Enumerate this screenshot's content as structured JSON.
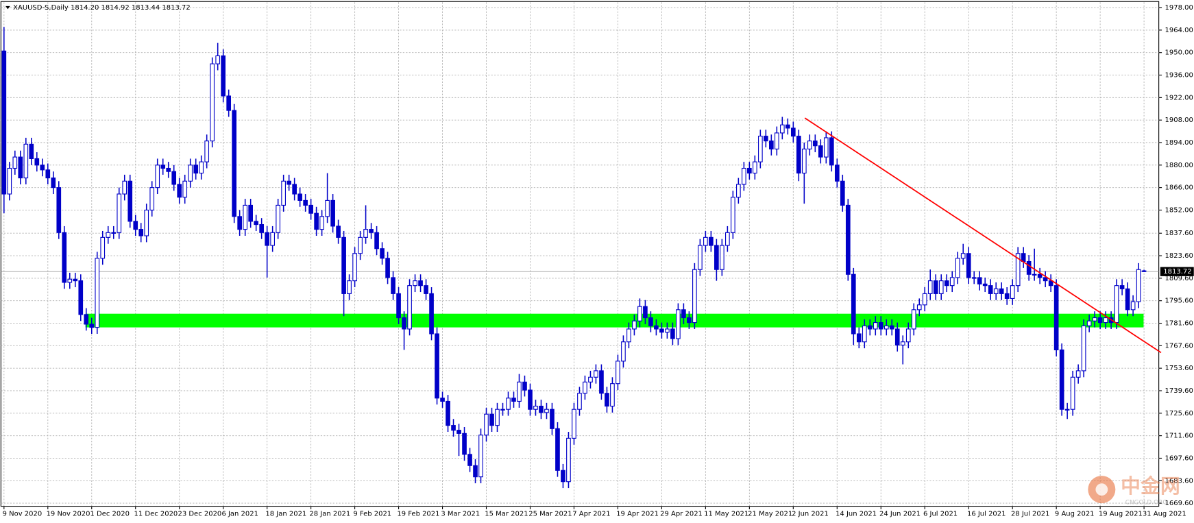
{
  "chart_data": {
    "type": "candlestick",
    "title": "XAUUSD-S,Daily  1814.20 1814.92 1813.44 1813.72",
    "categories": [
      "9 Nov 2020",
      null,
      null,
      null,
      null,
      null,
      null,
      null,
      "19 Nov 2020",
      null,
      null,
      null,
      null,
      null,
      null,
      null,
      "1 Dec 2020",
      null,
      null,
      null,
      null,
      null,
      null,
      null,
      "11 Dec 2020",
      null,
      null,
      null,
      null,
      null,
      null,
      null,
      "23 Dec 2020",
      null,
      null,
      null,
      null,
      null,
      null,
      null,
      "6 Jan 2021",
      null,
      null,
      null,
      null,
      null,
      null,
      null,
      "18 Jan 2021",
      null,
      null,
      null,
      null,
      null,
      null,
      null,
      "28 Jan 2021",
      null,
      null,
      null,
      null,
      null,
      null,
      null,
      "9 Feb 2021",
      null,
      null,
      null,
      null,
      null,
      null,
      null,
      "19 Feb 2021",
      null,
      null,
      null,
      null,
      null,
      null,
      null,
      "3 Mar 2021",
      null,
      null,
      null,
      null,
      null,
      null,
      null,
      "15 Mar 2021",
      null,
      null,
      null,
      null,
      null,
      null,
      null,
      "25 Mar 2021",
      null,
      null,
      null,
      null,
      null,
      null,
      null,
      "7 Apr 2021",
      null,
      null,
      null,
      null,
      null,
      null,
      null,
      "19 Apr 2021",
      null,
      null,
      null,
      null,
      null,
      null,
      null,
      "29 Apr 2021",
      null,
      null,
      null,
      null,
      null,
      null,
      null,
      "11 May 2021",
      null,
      null,
      null,
      null,
      null,
      null,
      null,
      "21 May 2021",
      null,
      null,
      null,
      null,
      null,
      null,
      null,
      "2 Jun 2021",
      null,
      null,
      null,
      null,
      null,
      null,
      null,
      "14 Jun 2021",
      null,
      null,
      null,
      null,
      null,
      null,
      null,
      "24 Jun 2021",
      null,
      null,
      null,
      null,
      null,
      null,
      null,
      "6 Jul 2021",
      null,
      null,
      null,
      null,
      null,
      null,
      null,
      "16 Jul 2021",
      null,
      null,
      null,
      null,
      null,
      null,
      null,
      "28 Jul 2021",
      null,
      null,
      null,
      null,
      null,
      null,
      null,
      "9 Aug 2021",
      null,
      null,
      null,
      null,
      null,
      null,
      null,
      "19 Aug 2021",
      null,
      null,
      null,
      null,
      null,
      null,
      null,
      "31 Aug 2021"
    ],
    "open": [
      1951,
      1862,
      1878,
      1885,
      1872,
      1893,
      1884,
      1880,
      1877,
      1872,
      1866,
      1838,
      1807,
      1809,
      1808,
      1787,
      1781,
      1779,
      1822,
      1835,
      1838,
      1838,
      1862,
      1870,
      1845,
      1840,
      1836,
      1852,
      1866,
      1880,
      1878,
      1876,
      1868,
      1860,
      1870,
      1880,
      1875,
      1882,
      1895,
      1943,
      1948,
      1923,
      1914,
      1848,
      1840,
      1855,
      1845,
      1843,
      1838,
      1830,
      1838,
      1855,
      1870,
      1868,
      1862,
      1858,
      1855,
      1850,
      1840,
      1848,
      1858,
      1842,
      1835,
      1800,
      1808,
      1825,
      1835,
      1840,
      1838,
      1828,
      1822,
      1810,
      1800,
      1785,
      1778,
      1805,
      1808,
      1805,
      1800,
      1775,
      1735,
      1733,
      1718,
      1715,
      1713,
      1700,
      1693,
      1686,
      1712,
      1725,
      1718,
      1728,
      1728,
      1735,
      1733,
      1745,
      1740,
      1728,
      1730,
      1726,
      1728,
      1716,
      1690,
      1683,
      1710,
      1728,
      1738,
      1745,
      1748,
      1752,
      1738,
      1730,
      1744,
      1758,
      1770,
      1778,
      1783,
      1792,
      1785,
      1780,
      1778,
      1776,
      1778,
      1772,
      1790,
      1785,
      1782,
      1815,
      1830,
      1835,
      1830,
      1815,
      1830,
      1838,
      1860,
      1868,
      1878,
      1875,
      1882,
      1898,
      1895,
      1890,
      1900,
      1905,
      1903,
      1898,
      1875,
      1890,
      1895,
      1892,
      1885,
      1897,
      1880,
      1870,
      1855,
      1812,
      1775,
      1770,
      1780,
      1778,
      1782,
      1778,
      1780,
      1778,
      1768,
      1770,
      1778,
      1790,
      1793,
      1800,
      1808,
      1800,
      1808,
      1805,
      1810,
      1822,
      1825,
      1810,
      1810,
      1806,
      1805,
      1800,
      1803,
      1800,
      1797,
      1805,
      1825,
      1820,
      1812,
      1812,
      1810,
      1808,
      1805,
      1765,
      1728,
      1728,
      1748,
      1752,
      1780,
      1783,
      1785,
      1782,
      1785,
      1782,
      1805,
      1803,
      1790,
      1795,
      1814.2
    ],
    "high": [
      1966,
      1882,
      1889,
      1889,
      1897,
      1897,
      1888,
      1884,
      1881,
      1876,
      1870,
      1842,
      1813,
      1813,
      1812,
      1791,
      1785,
      1826,
      1839,
      1842,
      1842,
      1866,
      1874,
      1874,
      1849,
      1844,
      1856,
      1870,
      1884,
      1884,
      1882,
      1880,
      1872,
      1874,
      1884,
      1884,
      1886,
      1899,
      1947,
      1956,
      1952,
      1927,
      1918,
      1852,
      1859,
      1859,
      1849,
      1847,
      1842,
      1842,
      1859,
      1874,
      1874,
      1872,
      1866,
      1862,
      1859,
      1854,
      1852,
      1875,
      1862,
      1846,
      1839,
      1812,
      1829,
      1839,
      1855,
      1844,
      1842,
      1832,
      1826,
      1814,
      1804,
      1789,
      1809,
      1812,
      1812,
      1809,
      1804,
      1779,
      1739,
      1737,
      1722,
      1719,
      1717,
      1704,
      1697,
      1716,
      1729,
      1729,
      1732,
      1732,
      1739,
      1739,
      1750,
      1749,
      1744,
      1734,
      1734,
      1732,
      1732,
      1720,
      1694,
      1714,
      1732,
      1742,
      1749,
      1752,
      1756,
      1756,
      1742,
      1748,
      1762,
      1774,
      1782,
      1787,
      1797,
      1796,
      1789,
      1784,
      1782,
      1782,
      1782,
      1794,
      1794,
      1789,
      1819,
      1834,
      1839,
      1839,
      1834,
      1834,
      1842,
      1864,
      1872,
      1882,
      1882,
      1886,
      1902,
      1902,
      1899,
      1904,
      1910,
      1909,
      1907,
      1902,
      1894,
      1899,
      1899,
      1896,
      1901,
      1901,
      1884,
      1874,
      1859,
      1816,
      1779,
      1784,
      1784,
      1786,
      1786,
      1784,
      1784,
      1782,
      1774,
      1782,
      1794,
      1797,
      1804,
      1815,
      1812,
      1812,
      1812,
      1814,
      1826,
      1831,
      1829,
      1814,
      1814,
      1810,
      1809,
      1807,
      1807,
      1804,
      1809,
      1829,
      1829,
      1824,
      1828,
      1816,
      1814,
      1812,
      1809,
      1769,
      1732,
      1752,
      1756,
      1784,
      1787,
      1789,
      1789,
      1789,
      1789,
      1809,
      1809,
      1807,
      1799,
      1819,
      1814.92
    ],
    "low": [
      1850,
      1858,
      1874,
      1868,
      1868,
      1880,
      1876,
      1873,
      1868,
      1862,
      1834,
      1803,
      1803,
      1804,
      1783,
      1777,
      1775,
      1775,
      1818,
      1831,
      1834,
      1834,
      1858,
      1841,
      1836,
      1832,
      1832,
      1848,
      1862,
      1874,
      1872,
      1864,
      1856,
      1856,
      1866,
      1871,
      1871,
      1878,
      1891,
      1939,
      1919,
      1910,
      1844,
      1836,
      1836,
      1841,
      1839,
      1834,
      1810,
      1826,
      1834,
      1851,
      1864,
      1858,
      1854,
      1851,
      1846,
      1836,
      1836,
      1844,
      1838,
      1831,
      1786,
      1796,
      1804,
      1821,
      1831,
      1834,
      1824,
      1818,
      1806,
      1796,
      1781,
      1765,
      1774,
      1801,
      1801,
      1796,
      1771,
      1731,
      1729,
      1714,
      1711,
      1699,
      1696,
      1689,
      1682,
      1682,
      1708,
      1714,
      1714,
      1724,
      1724,
      1729,
      1729,
      1736,
      1724,
      1724,
      1722,
      1722,
      1712,
      1686,
      1679,
      1679,
      1706,
      1724,
      1734,
      1741,
      1744,
      1734,
      1726,
      1726,
      1740,
      1754,
      1766,
      1774,
      1779,
      1781,
      1776,
      1774,
      1772,
      1772,
      1768,
      1768,
      1781,
      1778,
      1778,
      1811,
      1826,
      1826,
      1808,
      1811,
      1826,
      1834,
      1856,
      1864,
      1871,
      1871,
      1878,
      1891,
      1886,
      1886,
      1896,
      1899,
      1894,
      1870,
      1856,
      1886,
      1888,
      1881,
      1881,
      1876,
      1866,
      1851,
      1808,
      1768,
      1766,
      1766,
      1774,
      1774,
      1774,
      1774,
      1774,
      1764,
      1756,
      1766,
      1774,
      1786,
      1789,
      1796,
      1796,
      1796,
      1801,
      1801,
      1806,
      1818,
      1806,
      1806,
      1802,
      1801,
      1796,
      1796,
      1796,
      1793,
      1793,
      1801,
      1816,
      1808,
      1808,
      1806,
      1804,
      1801,
      1761,
      1724,
      1722,
      1724,
      1744,
      1748,
      1776,
      1779,
      1778,
      1778,
      1778,
      1778,
      1799,
      1786,
      1786,
      1791,
      1813.44
    ],
    "close": [
      1862,
      1878,
      1885,
      1872,
      1893,
      1884,
      1880,
      1877,
      1872,
      1866,
      1838,
      1807,
      1809,
      1808,
      1787,
      1781,
      1779,
      1822,
      1835,
      1838,
      1838,
      1862,
      1870,
      1845,
      1840,
      1836,
      1852,
      1866,
      1880,
      1878,
      1876,
      1868,
      1860,
      1870,
      1880,
      1875,
      1882,
      1895,
      1943,
      1948,
      1923,
      1914,
      1848,
      1840,
      1855,
      1845,
      1843,
      1838,
      1830,
      1838,
      1855,
      1870,
      1868,
      1862,
      1858,
      1855,
      1850,
      1840,
      1848,
      1858,
      1842,
      1835,
      1800,
      1808,
      1825,
      1835,
      1840,
      1838,
      1828,
      1822,
      1810,
      1800,
      1785,
      1778,
      1805,
      1808,
      1805,
      1800,
      1775,
      1735,
      1733,
      1718,
      1715,
      1713,
      1700,
      1693,
      1686,
      1712,
      1725,
      1718,
      1728,
      1728,
      1735,
      1733,
      1745,
      1740,
      1728,
      1730,
      1726,
      1728,
      1716,
      1690,
      1683,
      1710,
      1728,
      1738,
      1745,
      1748,
      1752,
      1738,
      1730,
      1744,
      1758,
      1770,
      1778,
      1783,
      1792,
      1785,
      1780,
      1778,
      1776,
      1778,
      1772,
      1790,
      1785,
      1782,
      1815,
      1830,
      1835,
      1830,
      1815,
      1830,
      1838,
      1860,
      1868,
      1878,
      1875,
      1882,
      1898,
      1895,
      1890,
      1900,
      1905,
      1903,
      1898,
      1875,
      1890,
      1895,
      1892,
      1885,
      1897,
      1880,
      1870,
      1855,
      1812,
      1775,
      1770,
      1780,
      1778,
      1782,
      1778,
      1780,
      1778,
      1768,
      1770,
      1778,
      1790,
      1793,
      1800,
      1808,
      1800,
      1808,
      1805,
      1810,
      1822,
      1825,
      1810,
      1810,
      1806,
      1805,
      1800,
      1803,
      1800,
      1797,
      1805,
      1825,
      1820,
      1812,
      1812,
      1810,
      1808,
      1805,
      1765,
      1728,
      1728,
      1748,
      1752,
      1780,
      1783,
      1785,
      1782,
      1785,
      1782,
      1805,
      1803,
      1790,
      1795,
      1815,
      1813.72
    ],
    "up_color": "#ffffff",
    "down_color": "#0000c8",
    "edge_color": "#0000c8",
    "ylim": [
      1667.7,
      1981.3
    ],
    "yticks": [
      {
        "value": 1978,
        "label": "1978.00"
      },
      {
        "value": 1964,
        "label": "1964.00"
      },
      {
        "value": 1950,
        "label": "1950.00"
      },
      {
        "value": 1936,
        "label": "1936.00"
      },
      {
        "value": 1922,
        "label": "1922.00"
      },
      {
        "value": 1908,
        "label": "1908.00"
      },
      {
        "value": 1894,
        "label": "1894.00"
      },
      {
        "value": 1880,
        "label": "1880.00"
      },
      {
        "value": 1866,
        "label": "1866.00"
      },
      {
        "value": 1852,
        "label": "1852.00"
      },
      {
        "value": 1837.6,
        "label": "1837.60"
      },
      {
        "value": 1823.6,
        "label": "1823.60"
      },
      {
        "value": 1809.6,
        "label": "1809.60"
      },
      {
        "value": 1795.6,
        "label": "1795.60"
      },
      {
        "value": 1781.6,
        "label": "1781.60"
      },
      {
        "value": 1767.6,
        "label": "1767.60"
      },
      {
        "value": 1753.6,
        "label": "1753.60"
      },
      {
        "value": 1739.6,
        "label": "1739.60"
      },
      {
        "value": 1725.6,
        "label": "1725.60"
      },
      {
        "value": 1711.6,
        "label": "1711.60"
      },
      {
        "value": 1697.6,
        "label": "1697.60"
      },
      {
        "value": 1683.6,
        "label": "1683.60"
      },
      {
        "value": 1669.6,
        "label": "1669.60"
      }
    ],
    "grid": true,
    "current_price": 1813.72,
    "zone": {
      "color": "#00ff00",
      "values": [
        1779,
        1787.5
      ]
    },
    "trendline": {
      "color": "#ff0000",
      "values": [
        1909.3,
        1763.3
      ]
    },
    "watermark": {
      "title": "中金网",
      "subtitle": "CNGOLD.ORG"
    }
  }
}
